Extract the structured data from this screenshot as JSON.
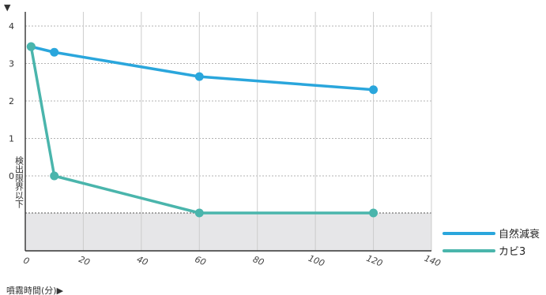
{
  "chart_data": {
    "type": "line",
    "title": "",
    "xlabel": "噴霧時間(分)",
    "ylabel": "",
    "xlim": [
      0,
      140
    ],
    "ylim": [
      -1,
      4
    ],
    "x_ticks": [
      0,
      20,
      40,
      60,
      80,
      100,
      120,
      140
    ],
    "y_ticks": [
      0,
      1,
      2,
      3,
      4
    ],
    "detection_limit_label": "検出限界以下",
    "grid": true,
    "legend_position": "right",
    "series": [
      {
        "name": "自然減衰",
        "color": "#2aa6dc",
        "points": [
          [
            2,
            3.45
          ],
          [
            10,
            3.3
          ],
          [
            60,
            2.65
          ],
          [
            120,
            2.3
          ]
        ]
      },
      {
        "name": "カビ3",
        "color": "#4ab5ac",
        "points": [
          [
            2,
            3.45
          ],
          [
            10,
            0.0
          ],
          [
            60,
            -1.0
          ],
          [
            120,
            -1.0
          ]
        ]
      }
    ]
  },
  "labels": {
    "y_marker": "▼",
    "x_axis_title": "噴霧時間(分)▶"
  }
}
